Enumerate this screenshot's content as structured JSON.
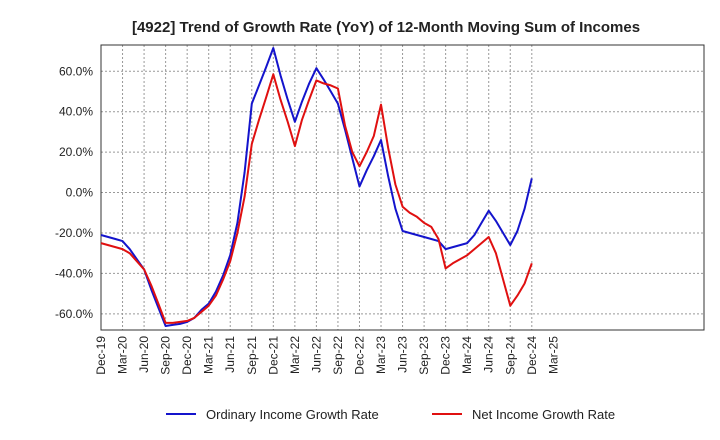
{
  "chart_data": {
    "type": "line",
    "title": "[4922]  Trend of Growth Rate (YoY) of 12-Month Moving Sum of Incomes",
    "xlabel": "",
    "ylabel": "",
    "ylim": [
      -68,
      73
    ],
    "yticks": [
      60,
      40,
      20,
      0,
      -20,
      -40,
      -60
    ],
    "ytick_labels": [
      "60.0%",
      "40.0%",
      "20.0%",
      "0.0%",
      "-20.0%",
      "-40.0%",
      "-60.0%"
    ],
    "x_tick_labels": [
      "Dec-19",
      "Mar-20",
      "Jun-20",
      "Sep-20",
      "Dec-20",
      "Mar-21",
      "Jun-21",
      "Sep-21",
      "Dec-21",
      "Mar-22",
      "Jun-22",
      "Sep-22",
      "Dec-22",
      "Mar-23",
      "Jun-23",
      "Sep-23",
      "Dec-23",
      "Mar-24",
      "Jun-24",
      "Sep-24",
      "Dec-24",
      "Mar-25"
    ],
    "x_months": [
      "2019-12",
      "2020-01",
      "2020-02",
      "2020-03",
      "2020-04",
      "2020-05",
      "2020-06",
      "2020-07",
      "2020-08",
      "2020-09",
      "2020-10",
      "2020-11",
      "2020-12",
      "2021-01",
      "2021-02",
      "2021-03",
      "2021-04",
      "2021-05",
      "2021-06",
      "2021-07",
      "2021-08",
      "2021-09",
      "2021-10",
      "2021-11",
      "2021-12",
      "2022-01",
      "2022-02",
      "2022-03",
      "2022-04",
      "2022-05",
      "2022-06",
      "2022-07",
      "2022-08",
      "2022-09",
      "2022-10",
      "2022-11",
      "2022-12",
      "2023-01",
      "2023-02",
      "2023-03",
      "2023-04",
      "2023-05",
      "2023-06",
      "2023-07",
      "2023-08",
      "2023-09",
      "2023-10",
      "2023-11",
      "2023-12",
      "2024-01",
      "2024-02",
      "2024-03",
      "2024-04",
      "2024-05",
      "2024-06",
      "2024-07",
      "2024-08",
      "2024-09",
      "2024-10",
      "2024-11",
      "2024-12"
    ],
    "grid": true,
    "legend_position": "bottom",
    "series": [
      {
        "name": "Ordinary Income Growth Rate",
        "color": "#1414cc",
        "values": [
          -21,
          -22,
          -23,
          -24,
          -28,
          -33,
          -38,
          -48,
          -57,
          -66,
          -65.5,
          -65,
          -64,
          -62,
          -58,
          -55,
          -49,
          -41,
          -31,
          -15,
          10,
          44,
          53,
          62,
          71.5,
          58,
          46,
          35,
          45,
          54,
          61.5,
          56,
          50,
          44,
          31,
          17,
          3,
          11,
          18,
          26,
          8,
          -8,
          -19,
          -20,
          -21,
          -22,
          -23,
          -24,
          -28,
          -27,
          -26,
          -25,
          -21,
          -15,
          -9,
          -14,
          -20,
          -26,
          -19,
          -8,
          7
        ]
      },
      {
        "name": "Net Income Growth Rate",
        "color": "#e01010",
        "values": [
          -25,
          -26,
          -27,
          -28,
          -30,
          -34,
          -38,
          -46,
          -55,
          -64.5,
          -64.5,
          -64,
          -63.5,
          -62,
          -59,
          -56,
          -51,
          -43,
          -34,
          -20,
          -2,
          24,
          36,
          47,
          58.5,
          46,
          35,
          23,
          36,
          46,
          55.5,
          54,
          53,
          51.5,
          33,
          20,
          13,
          20,
          28,
          43.5,
          22,
          4,
          -7,
          -10,
          -12,
          -15,
          -17,
          -23,
          -37.5,
          -35,
          -33,
          -31,
          -28,
          -25,
          -22,
          -30,
          -43,
          -56,
          -51,
          -45,
          -35
        ]
      }
    ]
  }
}
